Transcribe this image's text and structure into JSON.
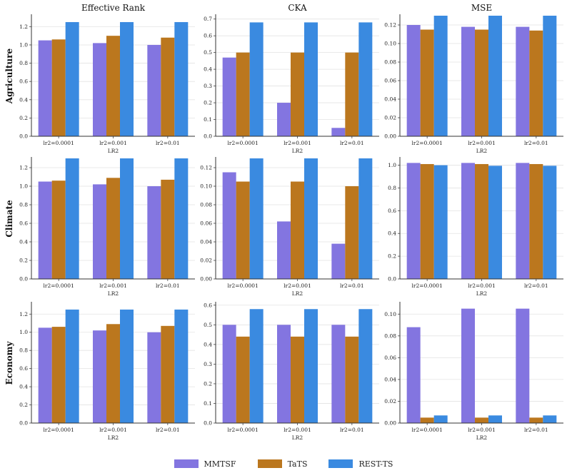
{
  "legend": {
    "series": [
      {
        "name": "MMTSF",
        "color": "#8375e0"
      },
      {
        "name": "TaTS",
        "color": "#bb771e"
      },
      {
        "name": "REST-TS",
        "color": "#3a8ae0"
      }
    ]
  },
  "chart_data": [
    {
      "type": "bar",
      "title": "Effective Rank",
      "row_label": "Agriculture",
      "xlabel": "LR2",
      "categories": [
        "lr2=0.0001",
        "lr2=0.001",
        "lr2=0.01"
      ],
      "ylim": [
        0,
        1.32
      ],
      "yticks": [
        "0.0",
        "0.2",
        "0.4",
        "0.6",
        "0.8",
        "1.0",
        "1.2"
      ],
      "ytick_values": [
        0,
        0.2,
        0.4,
        0.6,
        0.8,
        1.0,
        1.2
      ],
      "series": [
        {
          "name": "MMTSF",
          "values": [
            1.05,
            1.02,
            1.0
          ]
        },
        {
          "name": "TaTS",
          "values": [
            1.06,
            1.1,
            1.08
          ]
        },
        {
          "name": "REST-TS",
          "values": [
            1.25,
            1.25,
            1.25
          ]
        }
      ]
    },
    {
      "type": "bar",
      "title": "CKA",
      "row_label": "",
      "xlabel": "LR2",
      "categories": [
        "lr2=0.0001",
        "lr2=0.001",
        "lr2=0.01"
      ],
      "ylim": [
        0,
        0.72
      ],
      "yticks": [
        "0.0",
        "0.1",
        "0.2",
        "0.3",
        "0.4",
        "0.5",
        "0.6",
        "0.7"
      ],
      "ytick_values": [
        0,
        0.1,
        0.2,
        0.3,
        0.4,
        0.5,
        0.6,
        0.7
      ],
      "series": [
        {
          "name": "MMTSF",
          "values": [
            0.47,
            0.2,
            0.05
          ]
        },
        {
          "name": "TaTS",
          "values": [
            0.5,
            0.5,
            0.5
          ]
        },
        {
          "name": "REST-TS",
          "values": [
            0.68,
            0.68,
            0.68
          ]
        }
      ]
    },
    {
      "type": "bar",
      "title": "MSE",
      "row_label": "",
      "xlabel": "LR2",
      "categories": [
        "lr2=0.0001",
        "lr2=0.001",
        "lr2=0.01"
      ],
      "ylim": [
        0,
        0.13
      ],
      "yticks": [
        "0.00",
        "0.02",
        "0.04",
        "0.06",
        "0.08",
        "0.10",
        "0.12"
      ],
      "ytick_values": [
        0,
        0.02,
        0.04,
        0.06,
        0.08,
        0.1,
        0.12
      ],
      "series": [
        {
          "name": "MMTSF",
          "values": [
            0.12,
            0.118,
            0.118
          ]
        },
        {
          "name": "TaTS",
          "values": [
            0.115,
            0.115,
            0.114
          ]
        },
        {
          "name": "REST-TS",
          "values": [
            0.13,
            0.13,
            0.13
          ]
        }
      ]
    },
    {
      "type": "bar",
      "title": "",
      "row_label": "Climate",
      "xlabel": "LR2",
      "categories": [
        "lr2=0.0001",
        "lr2=0.001",
        "lr2=0.01"
      ],
      "ylim": [
        0,
        1.3
      ],
      "yticks": [
        "0.0",
        "0.2",
        "0.4",
        "0.6",
        "0.8",
        "1.0",
        "1.2"
      ],
      "ytick_values": [
        0,
        0.2,
        0.4,
        0.6,
        0.8,
        1.0,
        1.2
      ],
      "series": [
        {
          "name": "MMTSF",
          "values": [
            1.05,
            1.02,
            1.0
          ]
        },
        {
          "name": "TaTS",
          "values": [
            1.06,
            1.09,
            1.07
          ]
        },
        {
          "name": "REST-TS",
          "values": [
            1.3,
            1.3,
            1.3
          ]
        }
      ]
    },
    {
      "type": "bar",
      "title": "",
      "row_label": "",
      "xlabel": "LR2",
      "categories": [
        "lr2=0.0001",
        "lr2=0.001",
        "lr2=0.01"
      ],
      "ylim": [
        0,
        0.13
      ],
      "yticks": [
        "0.00",
        "0.02",
        "0.04",
        "0.06",
        "0.08",
        "0.10",
        "0.12"
      ],
      "ytick_values": [
        0,
        0.02,
        0.04,
        0.06,
        0.08,
        0.1,
        0.12
      ],
      "series": [
        {
          "name": "MMTSF",
          "values": [
            0.115,
            0.062,
            0.038
          ]
        },
        {
          "name": "TaTS",
          "values": [
            0.105,
            0.105,
            0.1
          ]
        },
        {
          "name": "REST-TS",
          "values": [
            0.13,
            0.13,
            0.13
          ]
        }
      ]
    },
    {
      "type": "bar",
      "title": "",
      "row_label": "",
      "xlabel": "LR2",
      "categories": [
        "lr2=0.0001",
        "lr2=0.001",
        "lr2=0.01"
      ],
      "ylim": [
        0,
        1.06
      ],
      "yticks": [
        "0.0",
        "0.2",
        "0.4",
        "0.6",
        "0.8",
        "1.0"
      ],
      "ytick_values": [
        0,
        0.2,
        0.4,
        0.6,
        0.8,
        1.0
      ],
      "series": [
        {
          "name": "MMTSF",
          "values": [
            1.02,
            1.02,
            1.02
          ]
        },
        {
          "name": "TaTS",
          "values": [
            1.01,
            1.01,
            1.01
          ]
        },
        {
          "name": "REST-TS",
          "values": [
            1.0,
            0.995,
            0.995
          ]
        }
      ]
    },
    {
      "type": "bar",
      "title": "",
      "row_label": "Economy",
      "xlabel": "LR2",
      "categories": [
        "lr2=0.0001",
        "lr2=0.001",
        "lr2=0.01"
      ],
      "ylim": [
        0,
        1.32
      ],
      "yticks": [
        "0.0",
        "0.2",
        "0.4",
        "0.6",
        "0.8",
        "1.0",
        "1.2"
      ],
      "ytick_values": [
        0,
        0.2,
        0.4,
        0.6,
        0.8,
        1.0,
        1.2
      ],
      "series": [
        {
          "name": "MMTSF",
          "values": [
            1.05,
            1.02,
            1.0
          ]
        },
        {
          "name": "TaTS",
          "values": [
            1.06,
            1.09,
            1.07
          ]
        },
        {
          "name": "REST-TS",
          "values": [
            1.25,
            1.25,
            1.25
          ]
        }
      ]
    },
    {
      "type": "bar",
      "title": "",
      "row_label": "",
      "xlabel": "LR2",
      "categories": [
        "lr2=0.0001",
        "lr2=0.001",
        "lr2=0.01"
      ],
      "ylim": [
        0,
        0.61
      ],
      "yticks": [
        "0.0",
        "0.1",
        "0.2",
        "0.3",
        "0.4",
        "0.5",
        "0.6"
      ],
      "ytick_values": [
        0,
        0.1,
        0.2,
        0.3,
        0.4,
        0.5,
        0.6
      ],
      "series": [
        {
          "name": "MMTSF",
          "values": [
            0.5,
            0.5,
            0.5
          ]
        },
        {
          "name": "TaTS",
          "values": [
            0.44,
            0.44,
            0.44
          ]
        },
        {
          "name": "REST-TS",
          "values": [
            0.58,
            0.58,
            0.58
          ]
        }
      ]
    },
    {
      "type": "bar",
      "title": "",
      "row_label": "",
      "xlabel": "LR2",
      "categories": [
        "lr2=0.0001",
        "lr2=0.001",
        "lr2=0.01"
      ],
      "ylim": [
        0,
        0.11
      ],
      "yticks": [
        "0.00",
        "0.02",
        "0.04",
        "0.06",
        "0.08",
        "0.10"
      ],
      "ytick_values": [
        0,
        0.02,
        0.04,
        0.06,
        0.08,
        0.1
      ],
      "series": [
        {
          "name": "MMTSF",
          "values": [
            0.088,
            0.105,
            0.105
          ]
        },
        {
          "name": "TaTS",
          "values": [
            0.005,
            0.005,
            0.005
          ]
        },
        {
          "name": "REST-TS",
          "values": [
            0.007,
            0.007,
            0.007
          ]
        }
      ]
    }
  ]
}
